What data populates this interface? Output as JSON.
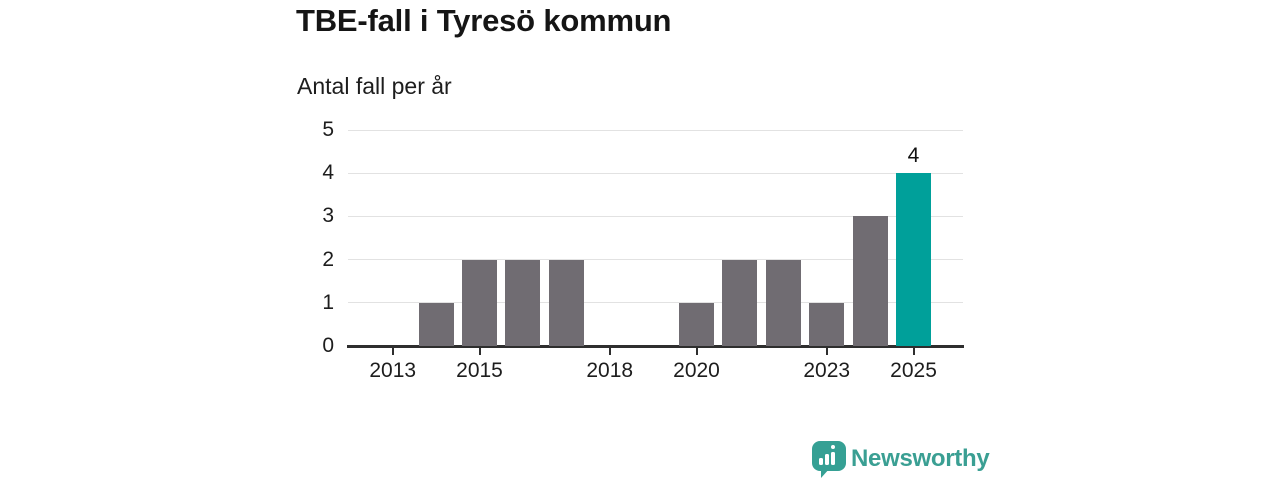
{
  "header": {
    "title": "TBE-fall i Tyresö kommun",
    "subtitle": "Antal fall per år"
  },
  "chart_data": {
    "type": "bar",
    "title": "TBE-fall i Tyresö kommun",
    "subtitle": "Antal fall per år",
    "ylabel": "Antal fall per år",
    "xlabel": "",
    "x": [
      2012,
      2013,
      2014,
      2015,
      2016,
      2017,
      2018,
      2019,
      2020,
      2021,
      2022,
      2023,
      2024,
      2025
    ],
    "values": [
      0,
      0,
      1,
      2,
      2,
      2,
      0,
      0,
      1,
      2,
      2,
      1,
      3,
      4
    ],
    "highlight_x": 2025,
    "highlight_value_label": "4",
    "y_ticks": [
      0,
      1,
      2,
      3,
      4,
      5
    ],
    "x_ticks": [
      {
        "year": 2013,
        "label": "2013"
      },
      {
        "year": 2015,
        "label": "2015"
      },
      {
        "year": 2018,
        "label": "2018"
      },
      {
        "year": 2020,
        "label": "2020"
      },
      {
        "year": 2023,
        "label": "2023"
      },
      {
        "year": 2025,
        "label": "2025"
      }
    ],
    "ylim": [
      0,
      5
    ],
    "xlim": [
      2011.97,
      2026.14
    ],
    "grid": true,
    "legend": false,
    "colors": {
      "bar": "#706c72",
      "highlight": "#00a09a",
      "grid": "#e2e2e2",
      "axis": "#2e2e2e"
    }
  },
  "footer": {
    "brand": "Newsworthy",
    "logo_icon": "bar-chart-speech-bubble-icon",
    "icon_color": "#35a094",
    "brand_color": "#3a9f93"
  }
}
